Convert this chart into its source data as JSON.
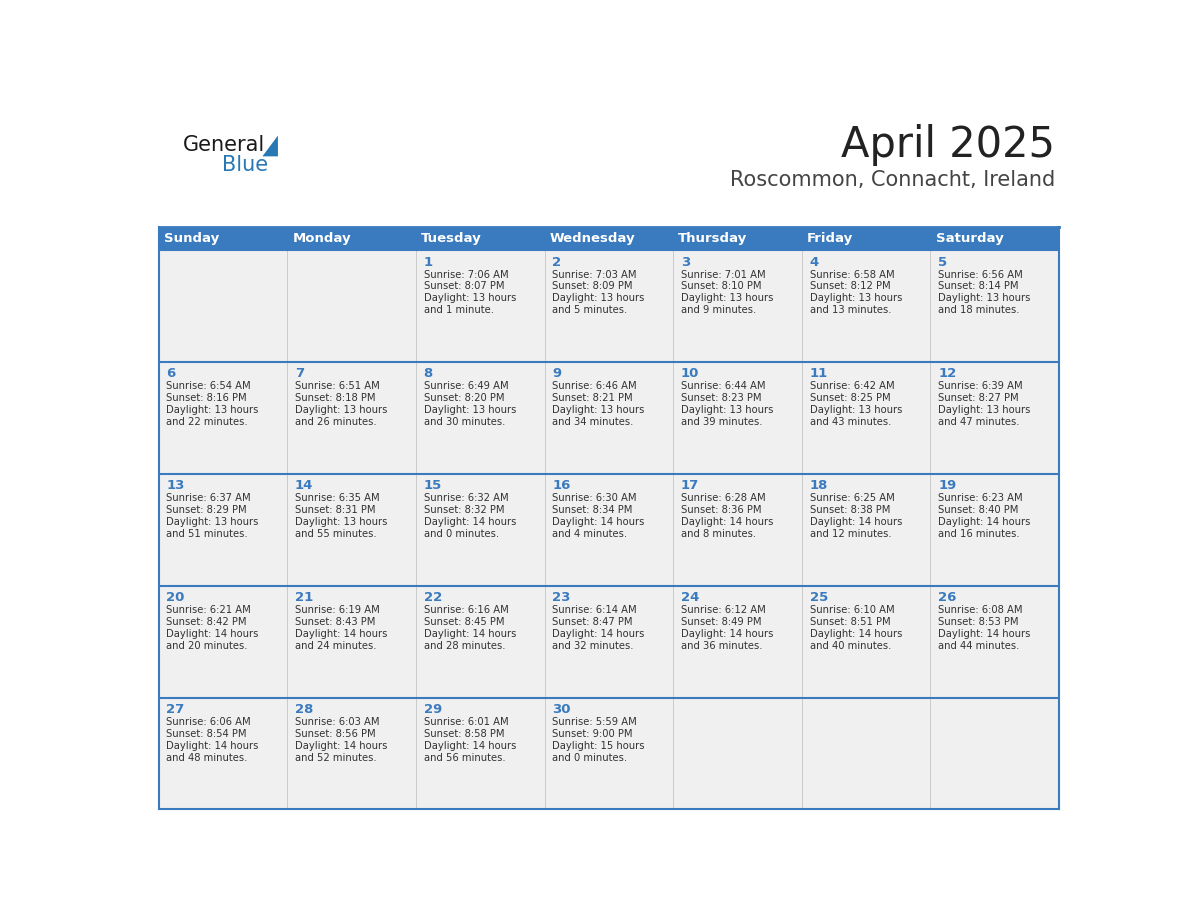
{
  "title": "April 2025",
  "subtitle": "Roscommon, Connacht, Ireland",
  "days_of_week": [
    "Sunday",
    "Monday",
    "Tuesday",
    "Wednesday",
    "Thursday",
    "Friday",
    "Saturday"
  ],
  "header_bg": "#3a7abf",
  "header_text": "#ffffff",
  "row_bg": "#f0f0f0",
  "border_color": "#3a7abf",
  "day_number_color": "#3a7abf",
  "cell_text_color": "#333333",
  "title_color": "#222222",
  "subtitle_color": "#444444",
  "logo_black": "#1a1a1a",
  "logo_blue": "#2878b5",
  "weeks": [
    [
      {
        "day": "",
        "sunrise": "",
        "sunset": "",
        "daylight": ""
      },
      {
        "day": "",
        "sunrise": "",
        "sunset": "",
        "daylight": ""
      },
      {
        "day": "1",
        "sunrise": "Sunrise: 7:06 AM",
        "sunset": "Sunset: 8:07 PM",
        "daylight": "Daylight: 13 hours\nand 1 minute."
      },
      {
        "day": "2",
        "sunrise": "Sunrise: 7:03 AM",
        "sunset": "Sunset: 8:09 PM",
        "daylight": "Daylight: 13 hours\nand 5 minutes."
      },
      {
        "day": "3",
        "sunrise": "Sunrise: 7:01 AM",
        "sunset": "Sunset: 8:10 PM",
        "daylight": "Daylight: 13 hours\nand 9 minutes."
      },
      {
        "day": "4",
        "sunrise": "Sunrise: 6:58 AM",
        "sunset": "Sunset: 8:12 PM",
        "daylight": "Daylight: 13 hours\nand 13 minutes."
      },
      {
        "day": "5",
        "sunrise": "Sunrise: 6:56 AM",
        "sunset": "Sunset: 8:14 PM",
        "daylight": "Daylight: 13 hours\nand 18 minutes."
      }
    ],
    [
      {
        "day": "6",
        "sunrise": "Sunrise: 6:54 AM",
        "sunset": "Sunset: 8:16 PM",
        "daylight": "Daylight: 13 hours\nand 22 minutes."
      },
      {
        "day": "7",
        "sunrise": "Sunrise: 6:51 AM",
        "sunset": "Sunset: 8:18 PM",
        "daylight": "Daylight: 13 hours\nand 26 minutes."
      },
      {
        "day": "8",
        "sunrise": "Sunrise: 6:49 AM",
        "sunset": "Sunset: 8:20 PM",
        "daylight": "Daylight: 13 hours\nand 30 minutes."
      },
      {
        "day": "9",
        "sunrise": "Sunrise: 6:46 AM",
        "sunset": "Sunset: 8:21 PM",
        "daylight": "Daylight: 13 hours\nand 34 minutes."
      },
      {
        "day": "10",
        "sunrise": "Sunrise: 6:44 AM",
        "sunset": "Sunset: 8:23 PM",
        "daylight": "Daylight: 13 hours\nand 39 minutes."
      },
      {
        "day": "11",
        "sunrise": "Sunrise: 6:42 AM",
        "sunset": "Sunset: 8:25 PM",
        "daylight": "Daylight: 13 hours\nand 43 minutes."
      },
      {
        "day": "12",
        "sunrise": "Sunrise: 6:39 AM",
        "sunset": "Sunset: 8:27 PM",
        "daylight": "Daylight: 13 hours\nand 47 minutes."
      }
    ],
    [
      {
        "day": "13",
        "sunrise": "Sunrise: 6:37 AM",
        "sunset": "Sunset: 8:29 PM",
        "daylight": "Daylight: 13 hours\nand 51 minutes."
      },
      {
        "day": "14",
        "sunrise": "Sunrise: 6:35 AM",
        "sunset": "Sunset: 8:31 PM",
        "daylight": "Daylight: 13 hours\nand 55 minutes."
      },
      {
        "day": "15",
        "sunrise": "Sunrise: 6:32 AM",
        "sunset": "Sunset: 8:32 PM",
        "daylight": "Daylight: 14 hours\nand 0 minutes."
      },
      {
        "day": "16",
        "sunrise": "Sunrise: 6:30 AM",
        "sunset": "Sunset: 8:34 PM",
        "daylight": "Daylight: 14 hours\nand 4 minutes."
      },
      {
        "day": "17",
        "sunrise": "Sunrise: 6:28 AM",
        "sunset": "Sunset: 8:36 PM",
        "daylight": "Daylight: 14 hours\nand 8 minutes."
      },
      {
        "day": "18",
        "sunrise": "Sunrise: 6:25 AM",
        "sunset": "Sunset: 8:38 PM",
        "daylight": "Daylight: 14 hours\nand 12 minutes."
      },
      {
        "day": "19",
        "sunrise": "Sunrise: 6:23 AM",
        "sunset": "Sunset: 8:40 PM",
        "daylight": "Daylight: 14 hours\nand 16 minutes."
      }
    ],
    [
      {
        "day": "20",
        "sunrise": "Sunrise: 6:21 AM",
        "sunset": "Sunset: 8:42 PM",
        "daylight": "Daylight: 14 hours\nand 20 minutes."
      },
      {
        "day": "21",
        "sunrise": "Sunrise: 6:19 AM",
        "sunset": "Sunset: 8:43 PM",
        "daylight": "Daylight: 14 hours\nand 24 minutes."
      },
      {
        "day": "22",
        "sunrise": "Sunrise: 6:16 AM",
        "sunset": "Sunset: 8:45 PM",
        "daylight": "Daylight: 14 hours\nand 28 minutes."
      },
      {
        "day": "23",
        "sunrise": "Sunrise: 6:14 AM",
        "sunset": "Sunset: 8:47 PM",
        "daylight": "Daylight: 14 hours\nand 32 minutes."
      },
      {
        "day": "24",
        "sunrise": "Sunrise: 6:12 AM",
        "sunset": "Sunset: 8:49 PM",
        "daylight": "Daylight: 14 hours\nand 36 minutes."
      },
      {
        "day": "25",
        "sunrise": "Sunrise: 6:10 AM",
        "sunset": "Sunset: 8:51 PM",
        "daylight": "Daylight: 14 hours\nand 40 minutes."
      },
      {
        "day": "26",
        "sunrise": "Sunrise: 6:08 AM",
        "sunset": "Sunset: 8:53 PM",
        "daylight": "Daylight: 14 hours\nand 44 minutes."
      }
    ],
    [
      {
        "day": "27",
        "sunrise": "Sunrise: 6:06 AM",
        "sunset": "Sunset: 8:54 PM",
        "daylight": "Daylight: 14 hours\nand 48 minutes."
      },
      {
        "day": "28",
        "sunrise": "Sunrise: 6:03 AM",
        "sunset": "Sunset: 8:56 PM",
        "daylight": "Daylight: 14 hours\nand 52 minutes."
      },
      {
        "day": "29",
        "sunrise": "Sunrise: 6:01 AM",
        "sunset": "Sunset: 8:58 PM",
        "daylight": "Daylight: 14 hours\nand 56 minutes."
      },
      {
        "day": "30",
        "sunrise": "Sunrise: 5:59 AM",
        "sunset": "Sunset: 9:00 PM",
        "daylight": "Daylight: 15 hours\nand 0 minutes."
      },
      {
        "day": "",
        "sunrise": "",
        "sunset": "",
        "daylight": ""
      },
      {
        "day": "",
        "sunrise": "",
        "sunset": "",
        "daylight": ""
      },
      {
        "day": "",
        "sunrise": "",
        "sunset": "",
        "daylight": ""
      }
    ]
  ]
}
